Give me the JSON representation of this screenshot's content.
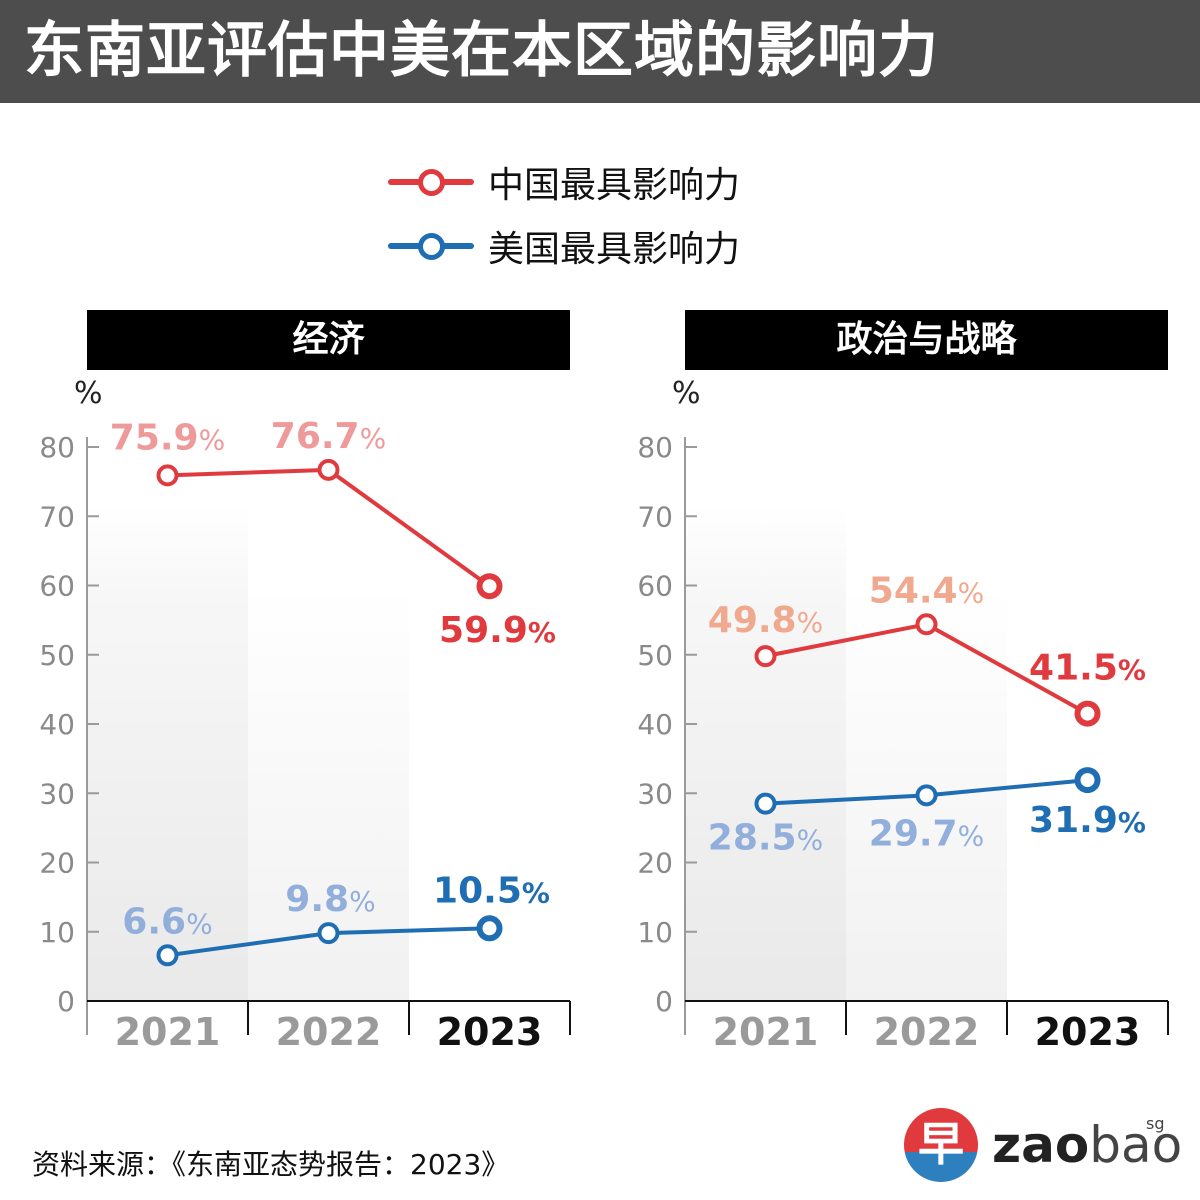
{
  "header": {
    "title": "东南亚评估中美在本区域的影响力"
  },
  "legend": {
    "china": {
      "label": "中国最具影响力",
      "color": "#e03a3e"
    },
    "usa": {
      "label": "美国最具影响力",
      "color": "#1f6db3"
    }
  },
  "colors": {
    "china_faded": "#ef9a9a",
    "china_faded_politics": "#f0a88e",
    "usa_faded": "#92afdc",
    "year_faded": "#9a9a9a",
    "year_current": "#111111"
  },
  "chart_data": [
    {
      "type": "line",
      "title": "经济",
      "ylabel": "%",
      "ylim": [
        0,
        80
      ],
      "yticks": [
        "0",
        "10",
        "20",
        "30",
        "40",
        "50",
        "60",
        "70",
        "80"
      ],
      "categories": [
        "2021",
        "2022",
        "2023"
      ],
      "series": [
        {
          "name": "中国最具影响力",
          "values": [
            75.9,
            76.7,
            59.9
          ],
          "labels": [
            "75.9",
            "76.7",
            "59.9"
          ]
        },
        {
          "name": "美国最具影响力",
          "values": [
            6.6,
            9.8,
            10.5
          ],
          "labels": [
            "6.6",
            "9.8",
            "10.5"
          ]
        }
      ],
      "pct_sign": "%"
    },
    {
      "type": "line",
      "title": "政治与战略",
      "ylabel": "%",
      "ylim": [
        0,
        80
      ],
      "yticks": [
        "0",
        "10",
        "20",
        "30",
        "40",
        "50",
        "60",
        "70",
        "80"
      ],
      "categories": [
        "2021",
        "2022",
        "2023"
      ],
      "series": [
        {
          "name": "中国最具影响力",
          "values": [
            49.8,
            54.4,
            41.5
          ],
          "labels": [
            "49.8",
            "54.4",
            "41.5"
          ]
        },
        {
          "name": "美国最具影响力",
          "values": [
            28.5,
            29.7,
            31.9
          ],
          "labels": [
            "28.5",
            "29.7",
            "31.9"
          ]
        }
      ],
      "pct_sign": "%"
    }
  ],
  "footer": {
    "source": "资料来源：《东南亚态势报告：2023》",
    "logo_glyph": "早",
    "logo_text_bold": "zao",
    "logo_text_light": "bao",
    "logo_suffix": "sg"
  }
}
